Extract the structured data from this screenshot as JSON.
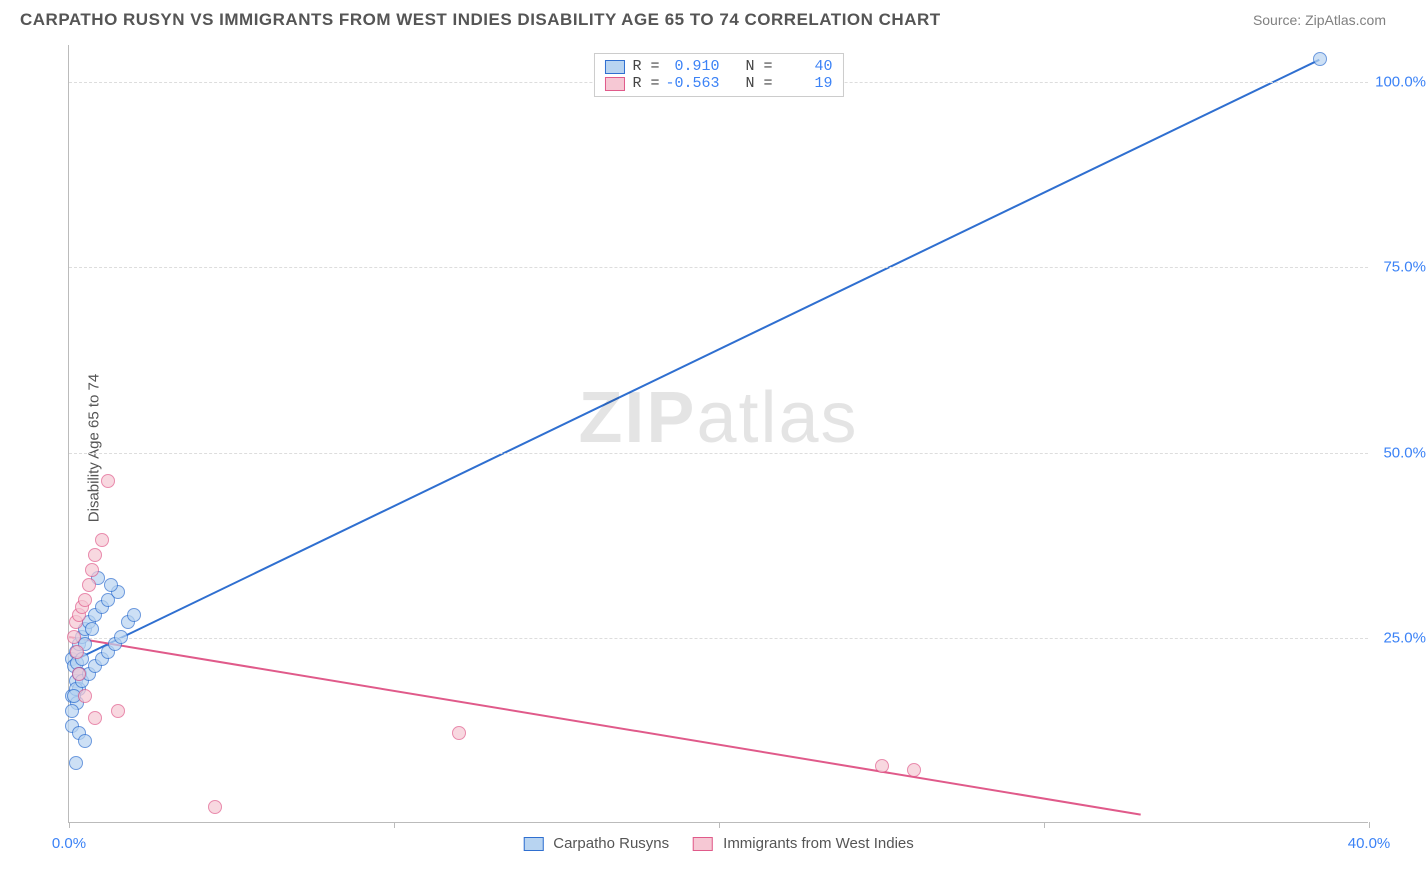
{
  "title": "CARPATHO RUSYN VS IMMIGRANTS FROM WEST INDIES DISABILITY AGE 65 TO 74 CORRELATION CHART",
  "source": "Source: ZipAtlas.com",
  "ylabel": "Disability Age 65 to 74",
  "watermark_a": "ZIP",
  "watermark_b": "atlas",
  "chart": {
    "type": "scatter-with-regression",
    "background_color": "#ffffff",
    "grid_color": "#dddddd",
    "axis_color": "#bbbbbb",
    "tick_color": "#3b82f6",
    "xlim": [
      0,
      40
    ],
    "ylim": [
      0,
      105
    ],
    "xticks": [
      0,
      10,
      20,
      30,
      40
    ],
    "xtick_labels": [
      "0.0%",
      "",
      "",
      "",
      "40.0%"
    ],
    "yticks": [
      25,
      50,
      75,
      100
    ],
    "ytick_labels": [
      "25.0%",
      "50.0%",
      "75.0%",
      "100.0%"
    ],
    "marker_radius": 7,
    "line_width": 2,
    "series": [
      {
        "name": "Carpatho Rusyns",
        "fill": "#b8d4f1",
        "stroke": "#2f6fd0",
        "r_label": "R = ",
        "r_value": "0.910",
        "n_label": "N = ",
        "n_value": "40",
        "trend": {
          "x1": 0,
          "y1": 21.5,
          "x2": 38.5,
          "y2": 103
        },
        "points": [
          [
            0.1,
            22
          ],
          [
            0.15,
            21
          ],
          [
            0.2,
            23
          ],
          [
            0.25,
            21.5
          ],
          [
            0.3,
            24
          ],
          [
            0.35,
            20
          ],
          [
            0.2,
            19
          ],
          [
            0.3,
            18
          ],
          [
            0.1,
            17
          ],
          [
            0.25,
            16
          ],
          [
            0.4,
            25
          ],
          [
            0.5,
            26
          ],
          [
            0.6,
            27
          ],
          [
            0.8,
            28
          ],
          [
            1.0,
            29
          ],
          [
            1.2,
            30
          ],
          [
            1.5,
            31
          ],
          [
            1.3,
            32
          ],
          [
            0.9,
            33
          ],
          [
            0.7,
            26
          ],
          [
            0.5,
            24
          ],
          [
            0.4,
            22
          ],
          [
            0.3,
            20
          ],
          [
            0.2,
            18
          ],
          [
            0.15,
            17
          ],
          [
            0.1,
            15
          ],
          [
            0.1,
            13
          ],
          [
            0.3,
            12
          ],
          [
            0.5,
            11
          ],
          [
            0.2,
            8
          ],
          [
            0.4,
            19
          ],
          [
            0.6,
            20
          ],
          [
            0.8,
            21
          ],
          [
            1.0,
            22
          ],
          [
            1.2,
            23
          ],
          [
            1.4,
            24
          ],
          [
            1.6,
            25
          ],
          [
            1.8,
            27
          ],
          [
            2.0,
            28
          ],
          [
            38.5,
            103
          ]
        ]
      },
      {
        "name": "Immigrants from West Indies",
        "fill": "#f6c8d4",
        "stroke": "#e05a8a",
        "r_label": "R = ",
        "r_value": "-0.563",
        "n_label": "N = ",
        "n_value": "19",
        "trend": {
          "x1": 0,
          "y1": 25,
          "x2": 33,
          "y2": 1
        },
        "points": [
          [
            0.2,
            27
          ],
          [
            0.3,
            28
          ],
          [
            0.4,
            29
          ],
          [
            0.5,
            30
          ],
          [
            0.6,
            32
          ],
          [
            0.7,
            34
          ],
          [
            0.8,
            36
          ],
          [
            1.0,
            38
          ],
          [
            1.2,
            46
          ],
          [
            0.15,
            25
          ],
          [
            0.25,
            23
          ],
          [
            0.3,
            20
          ],
          [
            0.5,
            17
          ],
          [
            0.8,
            14
          ],
          [
            1.5,
            15
          ],
          [
            4.5,
            2
          ],
          [
            12,
            12
          ],
          [
            25,
            7.5
          ],
          [
            26,
            7
          ]
        ]
      }
    ]
  },
  "legend_bottom": [
    {
      "label": "Carpatho Rusyns",
      "fill": "#b8d4f1",
      "stroke": "#2f6fd0"
    },
    {
      "label": "Immigrants from West Indies",
      "fill": "#f6c8d4",
      "stroke": "#e05a8a"
    }
  ]
}
